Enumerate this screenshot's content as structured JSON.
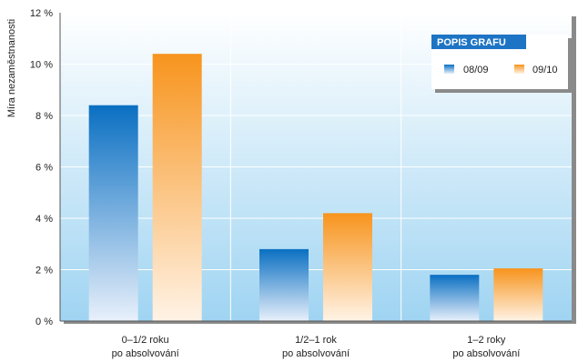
{
  "chart_data": {
    "type": "bar",
    "ylabel": "Míra nezaměstnanosti",
    "ylim": [
      0,
      12
    ],
    "yticks": [
      "0 %",
      "2 %",
      "4 %",
      "6 %",
      "8 %",
      "10 %",
      "12 %"
    ],
    "ytick_values": [
      0,
      2,
      4,
      6,
      8,
      10,
      12
    ],
    "categories": [
      [
        "0–1/2 roku",
        "po absolvování"
      ],
      [
        "1/2–1 rok",
        "po absolvování"
      ],
      [
        "1–2 roky",
        "po absolvování"
      ]
    ],
    "series": [
      {
        "name": "08/09",
        "values": [
          8.4,
          2.8,
          1.8
        ],
        "color": "#0a6fc2"
      },
      {
        "name": "09/10",
        "values": [
          10.4,
          4.2,
          2.05
        ],
        "color": "#f7941d"
      }
    ],
    "legend": {
      "title": "POPIS GRAFU",
      "placement": "top-right"
    },
    "grid": true,
    "colors": {
      "plot_top": "#ffffff",
      "plot_bottom": "#9fd4f2",
      "axis": "#555555",
      "legend_title_bg": "#1d74c4"
    }
  }
}
